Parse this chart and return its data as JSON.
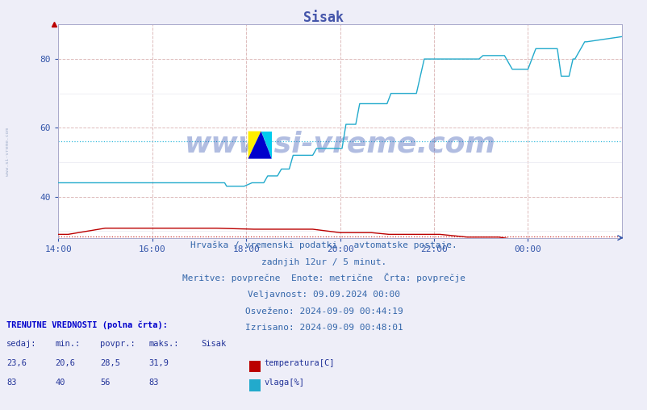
{
  "title": "Sisak",
  "title_color": "#4455aa",
  "title_fontsize": 12,
  "bg_color": "#eeeef8",
  "plot_bg_color": "#ffffff",
  "grid_v_color": "#ddbbbb",
  "grid_h_color": "#ddbbbb",
  "grid_minor_color": "#e8e8f0",
  "tick_color": "#3355aa",
  "ylim_low": 28,
  "ylim_high": 90,
  "yticks": [
    40,
    60,
    80
  ],
  "xtick_labels": [
    "14:00",
    "16:00",
    "18:00",
    "20:00",
    "22:00",
    "00:00"
  ],
  "xtick_positions": [
    0,
    48,
    96,
    144,
    192,
    240
  ],
  "n_points": 289,
  "temp_avg": 28.5,
  "hum_avg": 56,
  "temp_color": "#bb0000",
  "hum_color": "#22aacc",
  "temp_avg_color": "#cc3333",
  "hum_avg_color": "#33bbdd",
  "watermark": "www.si-vreme.com",
  "watermark_color": "#2244aa",
  "watermark_alpha": 0.35,
  "side_label_color": "#8899bb",
  "info_color": "#3366aa",
  "info_fs": 8,
  "bottom_text1": "Hrvaška / vremenski podatki - avtomatske postaje.",
  "bottom_text2": "zadnjih 12ur / 5 minut.",
  "bottom_text3": "Meritve: povprečne  Enote: metrične  Črta: povprečje",
  "bottom_text4": "Veljavnost: 09.09.2024 00:00",
  "bottom_text5": "Osveženo: 2024-09-09 00:44:19",
  "bottom_text6": "Izrisano: 2024-09-09 00:48:01",
  "label_bold_color": "#0000cc",
  "label_color": "#223399",
  "legend_label1": "temperatura[C]",
  "legend_label2": "vlaga[%]",
  "col_sedaj": "sedaj:",
  "col_min": "min.:",
  "col_povpr": "povpr.:",
  "col_maks": "maks.:",
  "col_sisak": "Sisak",
  "val_left_header": "TRENUTNE VREDNOSTI (polna črta):",
  "t_sedaj": "23,6",
  "t_min": "20,6",
  "t_povpr": "28,5",
  "t_maks": "31,9",
  "h_sedaj": "83",
  "h_min": "40",
  "h_povpr": "56",
  "h_maks": "83"
}
